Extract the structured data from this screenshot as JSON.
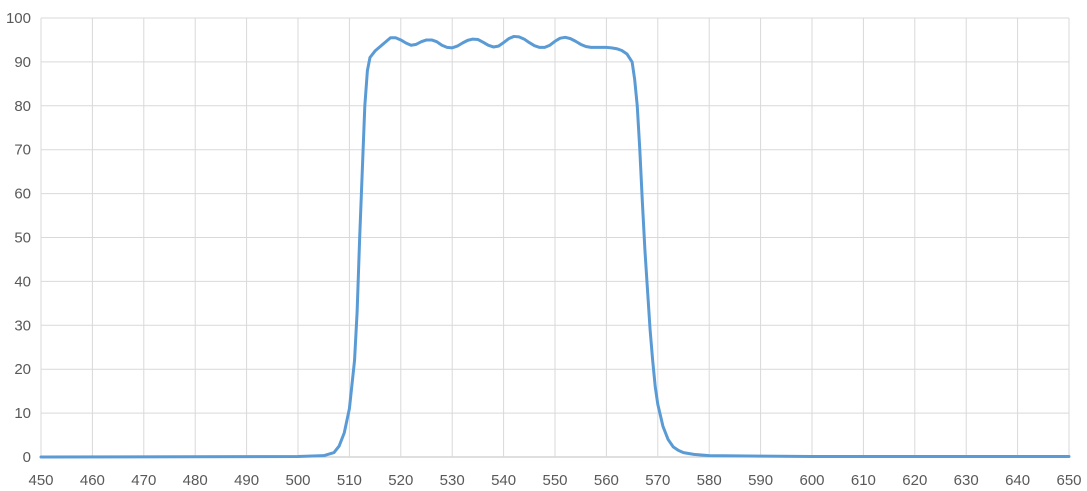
{
  "chart_data": {
    "type": "line",
    "title": "",
    "xlabel": "",
    "ylabel": "",
    "xlim": [
      450,
      650
    ],
    "ylim": [
      0,
      100
    ],
    "x_ticks": [
      450,
      460,
      470,
      480,
      490,
      500,
      510,
      520,
      530,
      540,
      550,
      560,
      570,
      580,
      590,
      600,
      610,
      620,
      630,
      640,
      650
    ],
    "y_ticks": [
      0,
      10,
      20,
      30,
      40,
      50,
      60,
      70,
      80,
      90,
      100
    ],
    "grid": true,
    "legend": "none",
    "series": [
      {
        "color": "#5b9bd5",
        "points": [
          [
            450,
            0.0
          ],
          [
            500,
            0.1
          ],
          [
            505,
            0.3
          ],
          [
            507,
            1.0
          ],
          [
            508,
            2.5
          ],
          [
            509,
            5.5
          ],
          [
            510,
            11
          ],
          [
            511,
            22
          ],
          [
            511.5,
            33
          ],
          [
            512,
            50
          ],
          [
            512.5,
            65
          ],
          [
            513,
            80
          ],
          [
            513.5,
            88
          ],
          [
            514,
            91
          ],
          [
            515,
            92.5
          ],
          [
            516,
            93.5
          ],
          [
            517,
            94.5
          ],
          [
            518,
            95.5
          ],
          [
            519,
            95.5
          ],
          [
            520,
            95
          ],
          [
            521,
            94.3
          ],
          [
            522,
            93.8
          ],
          [
            523,
            94
          ],
          [
            524,
            94.6
          ],
          [
            525,
            95
          ],
          [
            526,
            95
          ],
          [
            527,
            94.6
          ],
          [
            528,
            93.8
          ],
          [
            529,
            93.3
          ],
          [
            530,
            93.2
          ],
          [
            531,
            93.6
          ],
          [
            532,
            94.3
          ],
          [
            533,
            94.9
          ],
          [
            534,
            95.2
          ],
          [
            535,
            95.1
          ],
          [
            536,
            94.5
          ],
          [
            537,
            93.8
          ],
          [
            538,
            93.4
          ],
          [
            539,
            93.6
          ],
          [
            540,
            94.4
          ],
          [
            541,
            95.3
          ],
          [
            542,
            95.8
          ],
          [
            543,
            95.7
          ],
          [
            544,
            95.2
          ],
          [
            545,
            94.4
          ],
          [
            546,
            93.7
          ],
          [
            547,
            93.3
          ],
          [
            548,
            93.3
          ],
          [
            549,
            93.8
          ],
          [
            550,
            94.7
          ],
          [
            551,
            95.4
          ],
          [
            552,
            95.6
          ],
          [
            553,
            95.3
          ],
          [
            554,
            94.7
          ],
          [
            555,
            94
          ],
          [
            556,
            93.5
          ],
          [
            557,
            93.3
          ],
          [
            558,
            93.3
          ],
          [
            559,
            93.3
          ],
          [
            560,
            93.3
          ],
          [
            561,
            93.2
          ],
          [
            562,
            93
          ],
          [
            563,
            92.6
          ],
          [
            564,
            91.8
          ],
          [
            565,
            90
          ],
          [
            565.5,
            86
          ],
          [
            566,
            80
          ],
          [
            566.5,
            70
          ],
          [
            567,
            58
          ],
          [
            567.5,
            47
          ],
          [
            568,
            38
          ],
          [
            568.5,
            29
          ],
          [
            569,
            22
          ],
          [
            569.5,
            16
          ],
          [
            570,
            12
          ],
          [
            571,
            7
          ],
          [
            572,
            4
          ],
          [
            573,
            2.3
          ],
          [
            574,
            1.5
          ],
          [
            575,
            1.0
          ],
          [
            577,
            0.6
          ],
          [
            580,
            0.3
          ],
          [
            590,
            0.2
          ],
          [
            600,
            0.1
          ],
          [
            650,
            0.1
          ]
        ]
      }
    ]
  }
}
